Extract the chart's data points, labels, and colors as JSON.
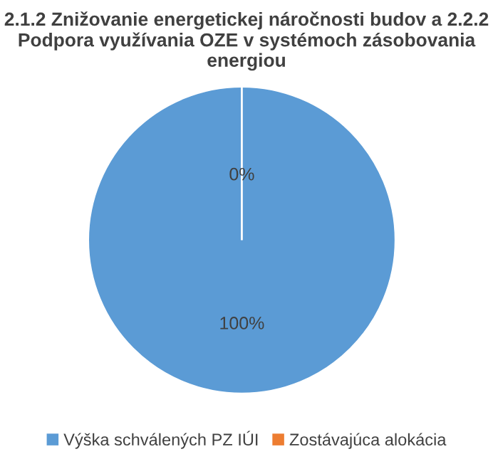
{
  "chart_data": {
    "type": "pie",
    "title": "2.1.2 Znižovanie energetickej náročnosti budov a 2.2.2 Podpora využívania OZE v systémoch zásobovania energiou",
    "categories": [
      "Výška schválených PZ IÚI",
      "Zostávajúca alokácia"
    ],
    "values": [
      100,
      0
    ],
    "colors": [
      "#5b9bd5",
      "#ed7d31"
    ],
    "value_labels": [
      "100%",
      "0%"
    ],
    "legend": "bottom"
  }
}
